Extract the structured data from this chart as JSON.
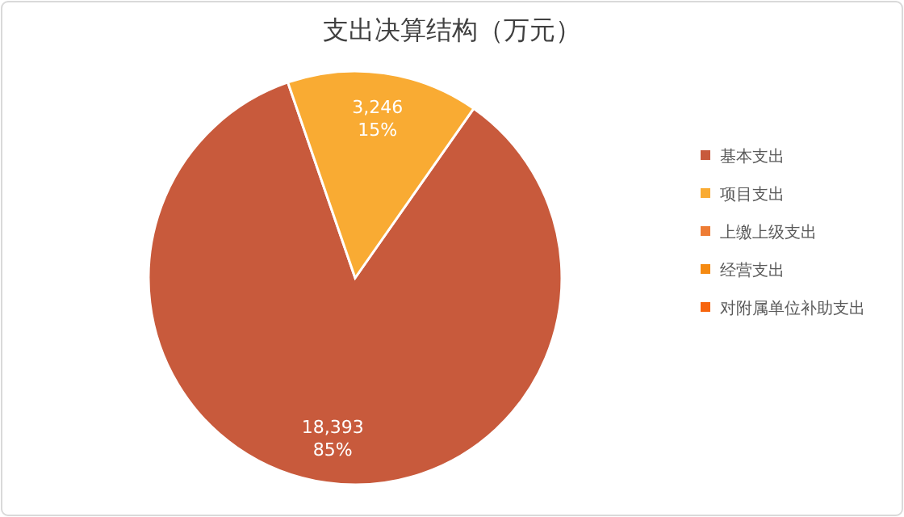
{
  "chart_data": {
    "type": "pie",
    "title": "支出决算结构（万元）",
    "categories": [
      "基本支出",
      "项目支出",
      "上缴上级支出",
      "经营支出",
      "对附属单位补助支出"
    ],
    "values": [
      18393,
      3246,
      0,
      0,
      0
    ],
    "colors": [
      "#c85a3c",
      "#f9ab33",
      "#ee7c34",
      "#f58a12",
      "#f7650e"
    ],
    "value_labels": [
      "18,393\n85%",
      "3,246\n15%",
      null,
      null,
      null
    ],
    "legend": "right"
  }
}
